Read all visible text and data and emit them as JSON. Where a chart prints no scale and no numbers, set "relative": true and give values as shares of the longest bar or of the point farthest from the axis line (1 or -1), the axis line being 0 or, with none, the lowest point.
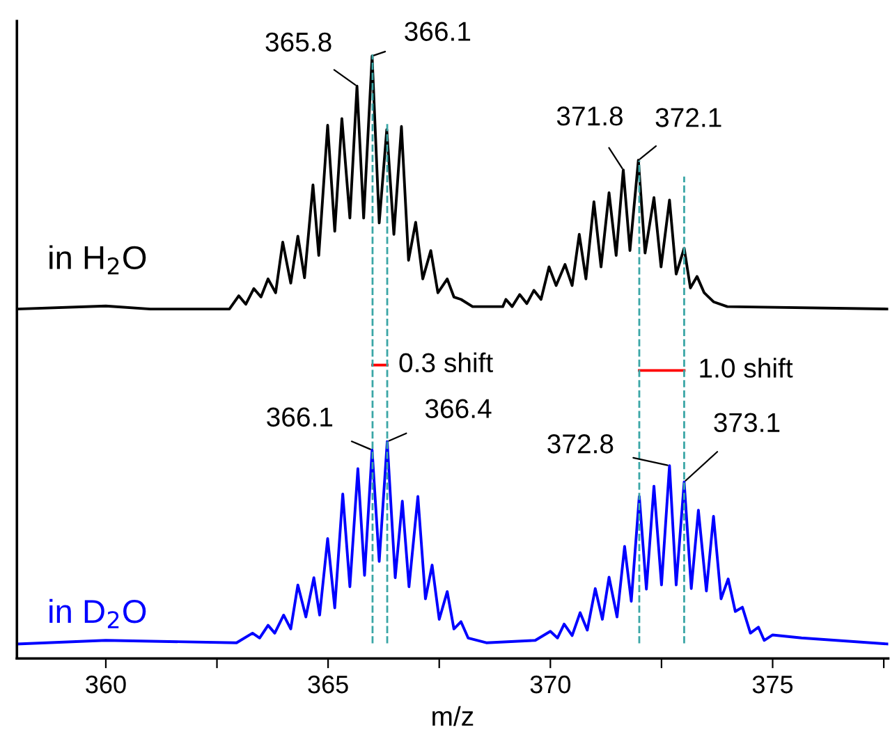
{
  "chart_data": {
    "type": "line",
    "relative": true,
    "xlabel": "m/z",
    "xlim": [
      358.0,
      377.6
    ],
    "xticks": [
      {
        "value": 360,
        "label": "360"
      },
      {
        "value": 362.5,
        "label": null
      },
      {
        "value": 365,
        "label": "365"
      },
      {
        "value": 367.5,
        "label": null
      },
      {
        "value": 370,
        "label": "370"
      },
      {
        "value": 372.5,
        "label": null
      },
      {
        "value": 375,
        "label": "375"
      },
      {
        "value": 377.5,
        "label": null
      }
    ],
    "tick_labels": "x",
    "grid": false,
    "marker": "none",
    "line_style": "solid",
    "series": [
      {
        "name": "in H$_{2}$O",
        "color": "#000000",
        "x": [
          358.0,
          360.0,
          361.0,
          362.78,
          362.99,
          363.15,
          363.33,
          363.49,
          363.65,
          363.82,
          363.98,
          364.16,
          364.32,
          364.47,
          364.66,
          364.79,
          364.99,
          365.15,
          365.31,
          365.49,
          365.65,
          365.8,
          365.99,
          366.15,
          366.32,
          366.48,
          366.65,
          366.81,
          366.97,
          367.13,
          367.31,
          367.47,
          367.68,
          367.83,
          367.99,
          368.25,
          368.93,
          369.0,
          369.14,
          369.31,
          369.47,
          369.63,
          369.79,
          369.97,
          370.13,
          370.33,
          370.49,
          370.65,
          370.8,
          370.98,
          371.14,
          371.32,
          371.48,
          371.64,
          371.79,
          371.98,
          372.13,
          372.33,
          372.49,
          372.68,
          372.83,
          373.01,
          373.15,
          373.3,
          373.46,
          373.67,
          373.98,
          377.6
        ],
        "values": [
          0.58,
          0.585,
          0.58,
          0.58,
          0.602,
          0.588,
          0.614,
          0.6,
          0.63,
          0.607,
          0.691,
          0.623,
          0.701,
          0.632,
          0.786,
          0.669,
          0.885,
          0.709,
          0.896,
          0.731,
          0.95,
          0.731,
          1.0,
          0.723,
          0.878,
          0.704,
          0.883,
          0.661,
          0.724,
          0.63,
          0.677,
          0.607,
          0.63,
          0.6,
          0.596,
          0.584,
          0.584,
          0.596,
          0.584,
          0.604,
          0.589,
          0.611,
          0.596,
          0.65,
          0.619,
          0.654,
          0.619,
          0.704,
          0.63,
          0.758,
          0.65,
          0.773,
          0.669,
          0.811,
          0.677,
          0.827,
          0.673,
          0.765,
          0.65,
          0.761,
          0.638,
          0.681,
          0.615,
          0.634,
          0.607,
          0.592,
          0.584,
          0.58
        ]
      },
      {
        "name": "in D$_{2}$O",
        "color": "#0000ff",
        "x": [
          358.0,
          360.0,
          362.94,
          363.3,
          363.46,
          363.65,
          363.8,
          364.0,
          364.16,
          364.32,
          364.5,
          364.68,
          364.81,
          364.99,
          365.15,
          365.33,
          365.49,
          365.67,
          365.82,
          365.99,
          366.15,
          366.33,
          366.51,
          366.67,
          366.82,
          367.02,
          367.19,
          367.34,
          367.5,
          367.68,
          367.83,
          367.99,
          368.15,
          368.56,
          369.66,
          370.0,
          370.16,
          370.31,
          370.49,
          370.67,
          370.83,
          371.01,
          371.17,
          371.32,
          371.5,
          371.67,
          371.82,
          372.0,
          372.16,
          372.33,
          372.5,
          372.68,
          372.83,
          373.01,
          373.17,
          373.33,
          373.51,
          373.67,
          373.84,
          374.0,
          374.16,
          374.32,
          374.5,
          374.68,
          374.81,
          375.0,
          375.65,
          377.6
        ],
        "values": [
          0.024,
          0.03,
          0.026,
          0.042,
          0.034,
          0.055,
          0.042,
          0.072,
          0.049,
          0.122,
          0.069,
          0.134,
          0.072,
          0.199,
          0.084,
          0.273,
          0.119,
          0.315,
          0.138,
          0.346,
          0.161,
          0.36,
          0.134,
          0.261,
          0.119,
          0.269,
          0.099,
          0.155,
          0.065,
          0.111,
          0.049,
          0.061,
          0.034,
          0.026,
          0.03,
          0.045,
          0.034,
          0.057,
          0.038,
          0.076,
          0.047,
          0.116,
          0.065,
          0.135,
          0.069,
          0.186,
          0.095,
          0.269,
          0.115,
          0.286,
          0.122,
          0.32,
          0.122,
          0.293,
          0.116,
          0.246,
          0.112,
          0.236,
          0.099,
          0.132,
          0.078,
          0.085,
          0.042,
          0.052,
          0.03,
          0.039,
          0.034,
          0.024
        ]
      },
      {
        "color": "#ff0000",
        "x": [
          366.0,
          366.33
        ],
        "values": [
          0.487,
          0.487
        ]
      },
      {
        "color": "#ff0000",
        "x": [
          372.0,
          373.01
        ],
        "values": [
          0.478,
          0.478
        ]
      }
    ],
    "ref_lines": [
      {
        "axis": "x",
        "value": 366.0,
        "color": "#3aa6a6",
        "line_style": "dashed"
      },
      {
        "axis": "x",
        "value": 366.33,
        "color": "#3aa6a6",
        "line_style": "dashed"
      },
      {
        "axis": "x",
        "value": 372.0,
        "color": "#3aa6a6",
        "line_style": "dashed"
      },
      {
        "axis": "x",
        "value": 373.01,
        "color": "#3aa6a6",
        "line_style": "dashed"
      }
    ],
    "annotations": [
      {
        "text": "365.8",
        "x": 365.65,
        "y": 0.95
      },
      {
        "text": "366.1",
        "x": 365.99,
        "y": 1.0
      },
      {
        "text": "371.8",
        "x": 371.64,
        "y": 0.811
      },
      {
        "text": "372.1",
        "x": 371.98,
        "y": 0.827
      },
      {
        "text": "366.1",
        "x": 365.99,
        "y": 0.346
      },
      {
        "text": "366.4",
        "x": 366.33,
        "y": 0.36
      },
      {
        "text": "372.8",
        "x": 372.68,
        "y": 0.32
      },
      {
        "text": "373.1",
        "x": 373.01,
        "y": 0.293
      },
      {
        "text": "0.3 shift",
        "x": 366.33,
        "y": 0.487
      },
      {
        "text": "1.0 shift",
        "x": 373.01,
        "y": 0.478
      }
    ]
  }
}
